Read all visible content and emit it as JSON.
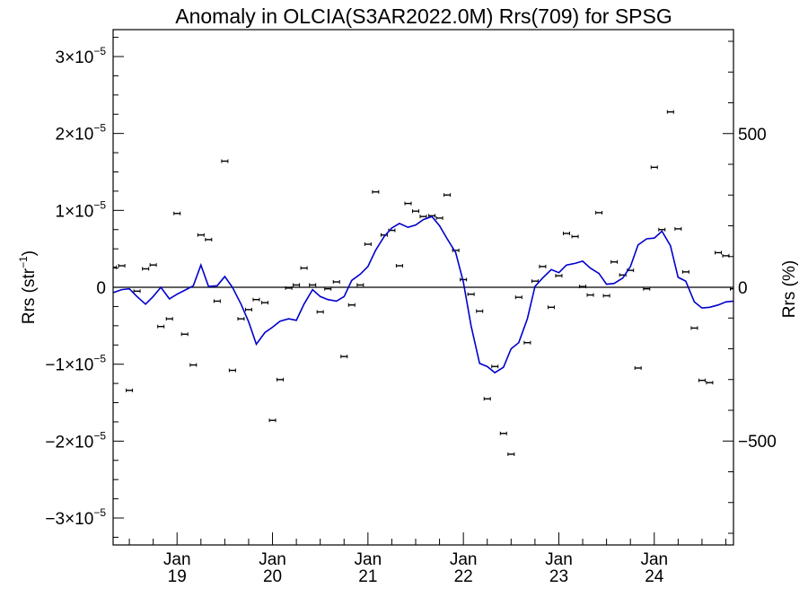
{
  "chart_data": {
    "type": "line",
    "title": "Anomaly in OLCIA(S3AR2022.0M) Rrs(709) for SPSG",
    "ylabel": "Rrs (str",
    "ylabel_sup": "−1",
    "ylabel_close": ")",
    "y2label": "Rrs (%)",
    "xlim": [
      2018.33,
      2024.83
    ],
    "ylim": [
      -3.35e-05,
      3.35e-05
    ],
    "y2lim": [
      -838,
      838
    ],
    "grid": false,
    "legend": "none",
    "zero_line": true,
    "colors": {
      "line": "#0000cc",
      "points": "#000000",
      "axis": "#000000"
    },
    "x_ticks": [
      {
        "x": 2019.0,
        "month": "Jan",
        "year": "19"
      },
      {
        "x": 2020.0,
        "month": "Jan",
        "year": "20"
      },
      {
        "x": 2021.0,
        "month": "Jan",
        "year": "21"
      },
      {
        "x": 2022.0,
        "month": "Jan",
        "year": "22"
      },
      {
        "x": 2023.0,
        "month": "Jan",
        "year": "23"
      },
      {
        "x": 2024.0,
        "month": "Jan",
        "year": "24"
      }
    ],
    "y_ticks": [
      {
        "v": 3e-05,
        "base": "3×10",
        "exp": "−5"
      },
      {
        "v": 2e-05,
        "base": "2×10",
        "exp": "−5"
      },
      {
        "v": 1e-05,
        "base": "1×10",
        "exp": "−5"
      },
      {
        "v": 0,
        "base": "0",
        "exp": ""
      },
      {
        "v": -1e-05,
        "base": "−1×10",
        "exp": "−5"
      },
      {
        "v": -2e-05,
        "base": "−2×10",
        "exp": "−5"
      },
      {
        "v": -3e-05,
        "base": "−3×10",
        "exp": "−5"
      }
    ],
    "y2_ticks": [
      {
        "v": 500,
        "label": "500"
      },
      {
        "v": 0,
        "label": "0"
      },
      {
        "v": -500,
        "label": "−500"
      }
    ],
    "series": [
      {
        "kind": "line",
        "x": [
          2018.33,
          2018.42,
          2018.5,
          2018.58,
          2018.67,
          2018.75,
          2018.83,
          2018.92,
          2019.0,
          2019.08,
          2019.17,
          2019.25,
          2019.33,
          2019.42,
          2019.5,
          2019.58,
          2019.67,
          2019.75,
          2019.83,
          2019.92,
          2020.0,
          2020.08,
          2020.17,
          2020.25,
          2020.33,
          2020.42,
          2020.5,
          2020.58,
          2020.67,
          2020.75,
          2020.83,
          2020.92,
          2021.0,
          2021.08,
          2021.17,
          2021.25,
          2021.33,
          2021.42,
          2021.5,
          2021.58,
          2021.67,
          2021.75,
          2021.83,
          2021.92,
          2022.0,
          2022.08,
          2022.17,
          2022.25,
          2022.33,
          2022.42,
          2022.5,
          2022.58,
          2022.67,
          2022.75,
          2022.83,
          2022.92,
          2023.0,
          2023.08,
          2023.17,
          2023.25,
          2023.33,
          2023.42,
          2023.5,
          2023.58,
          2023.67,
          2023.75,
          2023.83,
          2023.92,
          2024.0,
          2024.08,
          2024.17,
          2024.25,
          2024.33,
          2024.42,
          2024.5,
          2024.58,
          2024.67,
          2024.75,
          2024.83
        ],
        "y": [
          -7e-07,
          -3e-07,
          -2e-07,
          -1.2e-06,
          -2.2e-06,
          -1.2e-06,
          0.0,
          -1.5e-06,
          -9e-07,
          -4e-07,
          2e-07,
          2.9e-06,
          1e-07,
          2e-07,
          1.4e-06,
          0.0,
          -2.2e-06,
          -4.5e-06,
          -7.4e-06,
          -5.9e-06,
          -5.2e-06,
          -4.4e-06,
          -4.1e-06,
          -4.3e-06,
          -2.2e-06,
          -3e-07,
          -1.2e-06,
          -1.6e-06,
          -1.8e-06,
          -1.2e-06,
          9e-07,
          1.7e-06,
          2.7e-06,
          4.8e-06,
          6.6e-06,
          7.7e-06,
          8.3e-06,
          7.8e-06,
          8.1e-06,
          8.8e-06,
          9.2e-06,
          8e-06,
          6.3e-06,
          4.5e-06,
          7e-07,
          -5e-06,
          -9.9e-06,
          -1.03e-05,
          -1.11e-05,
          -1.04e-05,
          -8e-06,
          -7.2e-06,
          -4.1e-06,
          1e-07,
          1.2e-06,
          2.3e-06,
          1.9e-06,
          2.9e-06,
          3.1e-06,
          3.4e-06,
          2.5e-06,
          1.8e-06,
          4e-07,
          5e-07,
          1.2e-06,
          2.7e-06,
          5.5e-06,
          6.3e-06,
          6.4e-06,
          7.3e-06,
          5.4e-06,
          1.3e-06,
          8e-07,
          -1.9e-06,
          -2.7e-06,
          -2.6e-06,
          -2.3e-06,
          -1.9e-06,
          -1.8e-06
        ]
      },
      {
        "kind": "points",
        "x": [
          2018.33,
          2018.42,
          2018.5,
          2018.58,
          2018.67,
          2018.75,
          2018.83,
          2018.92,
          2019.0,
          2019.08,
          2019.17,
          2019.25,
          2019.33,
          2019.42,
          2019.5,
          2019.58,
          2019.67,
          2019.75,
          2019.83,
          2019.92,
          2020.0,
          2020.08,
          2020.17,
          2020.25,
          2020.33,
          2020.42,
          2020.5,
          2020.58,
          2020.67,
          2020.75,
          2020.83,
          2020.92,
          2021.0,
          2021.08,
          2021.17,
          2021.25,
          2021.33,
          2021.42,
          2021.5,
          2021.58,
          2021.67,
          2021.75,
          2021.83,
          2021.92,
          2022.0,
          2022.08,
          2022.17,
          2022.25,
          2022.33,
          2022.42,
          2022.5,
          2022.58,
          2022.67,
          2022.75,
          2022.83,
          2022.92,
          2023.0,
          2023.08,
          2023.17,
          2023.25,
          2023.33,
          2023.42,
          2023.5,
          2023.58,
          2023.67,
          2023.75,
          2023.83,
          2023.92,
          2024.0,
          2024.08,
          2024.17,
          2024.25,
          2024.33,
          2024.42,
          2024.5,
          2024.58,
          2024.67,
          2024.75,
          2024.83
        ],
        "y": [
          2.6e-06,
          2.8e-06,
          -1.34e-05,
          -5e-07,
          2.4e-06,
          2.9e-06,
          -5.1e-06,
          -4.1e-06,
          9.6e-06,
          -6.1e-06,
          -1.01e-05,
          6.8e-06,
          6.2e-06,
          -1.8e-06,
          1.64e-05,
          -1.08e-05,
          -4.1e-06,
          -2.9e-06,
          -1.6e-06,
          -2e-06,
          -1.73e-05,
          -1.2e-05,
          -1e-07,
          3e-07,
          2.5e-06,
          3e-07,
          -3.2e-06,
          -2e-07,
          7e-07,
          -9e-06,
          -2.3e-06,
          3e-07,
          5.6e-06,
          1.24e-05,
          6.8e-06,
          7.4e-06,
          2.8e-06,
          1.09e-05,
          9.9e-06,
          9.2e-06,
          9.3e-06,
          9e-06,
          1.2e-05,
          4.8e-06,
          1e-06,
          -9e-07,
          -3.1e-06,
          -1.45e-05,
          -1.03e-05,
          -1.9e-05,
          -2.17e-05,
          -1.3e-06,
          -7.2e-06,
          8e-07,
          2.7e-06,
          -2.6e-06,
          1.5e-06,
          7e-06,
          6.6e-06,
          1e-07,
          -1e-06,
          9.7e-06,
          -1.1e-06,
          3.3e-06,
          1.6e-06,
          2.2e-06,
          -1.05e-05,
          -2e-07,
          1.56e-05,
          7.5e-06,
          2.28e-05,
          7.6e-06,
          2e-06,
          -5.3e-06,
          -1.21e-05,
          -1.24e-05,
          4.5e-06,
          4.1e-06,
          -2e-07
        ]
      }
    ]
  }
}
